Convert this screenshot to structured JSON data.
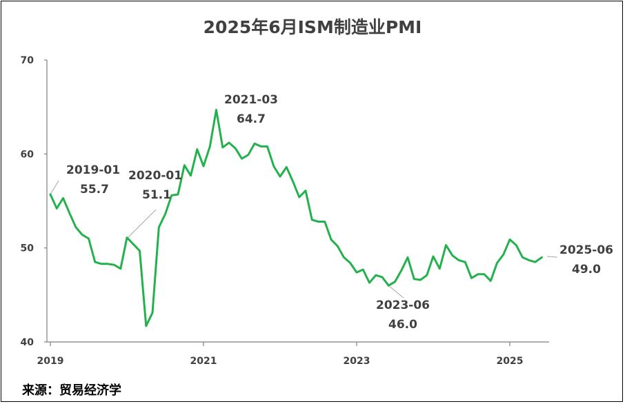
{
  "chart_data": {
    "type": "line",
    "title": "2025年6月ISM制造业PMI",
    "xlabel": "",
    "ylabel": "",
    "ylim": [
      40,
      70
    ],
    "yticks": [
      40,
      50,
      60,
      70
    ],
    "xticks": [
      "2019",
      "2021",
      "2023",
      "2025"
    ],
    "grid": false,
    "legend": "none",
    "series": [
      {
        "color": "#22b14c",
        "x": [
          "2019-01",
          "2019-02",
          "2019-03",
          "2019-04",
          "2019-05",
          "2019-06",
          "2019-07",
          "2019-08",
          "2019-09",
          "2019-10",
          "2019-11",
          "2019-12",
          "2020-01",
          "2020-02",
          "2020-03",
          "2020-04",
          "2020-05",
          "2020-06",
          "2020-07",
          "2020-08",
          "2020-09",
          "2020-10",
          "2020-11",
          "2020-12",
          "2021-01",
          "2021-02",
          "2021-03",
          "2021-04",
          "2021-05",
          "2021-06",
          "2021-07",
          "2021-08",
          "2021-09",
          "2021-10",
          "2021-11",
          "2021-12",
          "2022-01",
          "2022-02",
          "2022-03",
          "2022-04",
          "2022-05",
          "2022-06",
          "2022-07",
          "2022-08",
          "2022-09",
          "2022-10",
          "2022-11",
          "2022-12",
          "2023-01",
          "2023-02",
          "2023-03",
          "2023-04",
          "2023-05",
          "2023-06",
          "2023-07",
          "2023-08",
          "2023-09",
          "2023-10",
          "2023-11",
          "2023-12",
          "2024-01",
          "2024-02",
          "2024-03",
          "2024-04",
          "2024-05",
          "2024-06",
          "2024-07",
          "2024-08",
          "2024-09",
          "2024-10",
          "2024-11",
          "2024-12",
          "2025-01",
          "2025-02",
          "2025-03",
          "2025-04",
          "2025-05",
          "2025-06"
        ],
        "values": [
          55.7,
          54.2,
          55.3,
          53.7,
          52.2,
          51.4,
          51.0,
          48.5,
          48.3,
          48.3,
          48.2,
          47.8,
          51.1,
          50.4,
          49.7,
          41.7,
          43.1,
          52.2,
          53.6,
          55.6,
          55.7,
          58.8,
          57.7,
          60.5,
          58.7,
          60.8,
          64.7,
          60.7,
          61.2,
          60.6,
          59.5,
          59.9,
          61.1,
          60.8,
          60.8,
          58.7,
          57.6,
          58.6,
          57.1,
          55.4,
          56.1,
          53.0,
          52.8,
          52.8,
          50.9,
          50.2,
          49.0,
          48.4,
          47.4,
          47.7,
          46.3,
          47.1,
          46.9,
          46.0,
          46.4,
          47.6,
          49.0,
          46.7,
          46.6,
          47.1,
          49.1,
          47.8,
          50.3,
          49.2,
          48.7,
          48.5,
          46.8,
          47.2,
          47.2,
          46.5,
          48.4,
          49.3,
          50.9,
          50.3,
          49.0,
          48.7,
          48.5,
          49.0
        ]
      }
    ],
    "annotations": [
      {
        "x": "2019-01",
        "value": 55.7,
        "label": "2019-01",
        "value_label": "55.7"
      },
      {
        "x": "2020-01",
        "value": 51.1,
        "label": "2020-01",
        "value_label": "51.1"
      },
      {
        "x": "2021-03",
        "value": 64.7,
        "label": "2021-03",
        "value_label": "64.7"
      },
      {
        "x": "2023-06",
        "value": 46.0,
        "label": "2023-06",
        "value_label": "46.0"
      },
      {
        "x": "2025-06",
        "value": 49.0,
        "label": "2025-06",
        "value_label": "49.0"
      }
    ]
  },
  "source": "来源：贸易经济学"
}
